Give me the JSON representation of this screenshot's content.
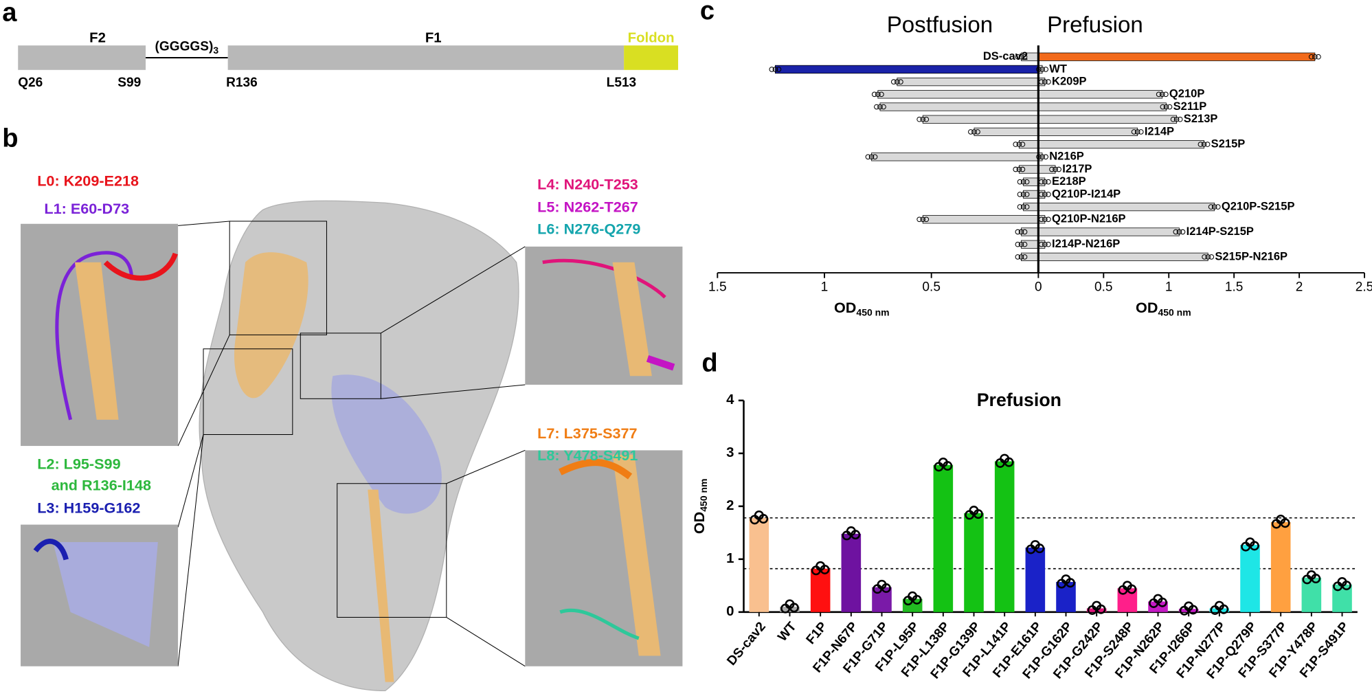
{
  "panel_labels": [
    "a",
    "b",
    "c",
    "d"
  ],
  "domain_map": {
    "domains": [
      "F2",
      "F1",
      "Foldon"
    ],
    "linker": "(GGGGS)",
    "linker_sub": "3",
    "residues": [
      "Q26",
      "S99",
      "R136",
      "L513"
    ]
  },
  "structure": {
    "loops": [
      {
        "label": "L0: K209-E218",
        "color": "#e8141c"
      },
      {
        "label": "L1: E60-D73",
        "color": "#7b22d8"
      },
      {
        "label": "L2: L95-S99",
        "color": "#2db83d"
      },
      {
        "label": "and R136-I148",
        "color": "#2db83d"
      },
      {
        "label": "L3: H159-G162",
        "color": "#1a1fb0"
      },
      {
        "label": "L4: N240-T253",
        "color": "#e0147a"
      },
      {
        "label": "L5: N262-T267",
        "color": "#c414c4"
      },
      {
        "label": "L6: N276-Q279",
        "color": "#14a5ad"
      },
      {
        "label": "L7: L375-S377",
        "color": "#f07d14"
      },
      {
        "label": "L8: Y478-S491",
        "color": "#2ec89a"
      }
    ]
  },
  "chart_data": [
    {
      "type": "diverging_bar",
      "categories": [
        "DS-cav2",
        "WT",
        "K209P",
        "Q210P",
        "S211P",
        "S213P",
        "I214P",
        "S215P",
        "N216P",
        "I217P",
        "E218P",
        "Q210P-I214P",
        "Q210P-S215P",
        "Q210P-N216P",
        "I214P-S215P",
        "I214P-N216P",
        "S215P-N216P"
      ],
      "series": [
        {
          "name": "Postfusion",
          "values": [
            0.08,
            1.23,
            0.66,
            0.75,
            0.74,
            0.54,
            0.3,
            0.09,
            0.78,
            0.09,
            0.07,
            0.07,
            0.07,
            0.54,
            0.08,
            0.08,
            0.08
          ],
          "colors": [
            "#d9d9d9",
            "#1a22a8",
            "#d9d9d9",
            "#d9d9d9",
            "#d9d9d9",
            "#d9d9d9",
            "#d9d9d9",
            "#d9d9d9",
            "#d9d9d9",
            "#d9d9d9",
            "#d9d9d9",
            "#d9d9d9",
            "#d9d9d9",
            "#d9d9d9",
            "#d9d9d9",
            "#d9d9d9",
            "#d9d9d9"
          ]
        },
        {
          "name": "Prefusion",
          "values": [
            2.12,
            0.03,
            0.05,
            0.95,
            0.98,
            1.06,
            0.76,
            1.27,
            0.03,
            0.13,
            0.05,
            0.05,
            1.35,
            0.05,
            1.08,
            0.05,
            1.3
          ],
          "colors": [
            "#f26a1b",
            "#d9d9d9",
            "#d9d9d9",
            "#d9d9d9",
            "#d9d9d9",
            "#d9d9d9",
            "#d9d9d9",
            "#d9d9d9",
            "#d9d9d9",
            "#d9d9d9",
            "#d9d9d9",
            "#d9d9d9",
            "#d9d9d9",
            "#d9d9d9",
            "#d9d9d9",
            "#d9d9d9",
            "#d9d9d9"
          ]
        }
      ],
      "xlim": [
        0,
        1.5
      ],
      "xticks": [
        1.5,
        1,
        0.5,
        0
      ],
      "x2lim": [
        0,
        2.5
      ],
      "x2ticks": [
        0.5,
        1,
        1.5,
        2,
        2.5
      ],
      "x_label": "OD",
      "x_label_sub": "450 nm"
    },
    {
      "type": "bar",
      "title": "Prefusion",
      "categories": [
        "DS-cav2",
        "WT",
        "F1P",
        "F1P-N67P",
        "F1P-G71P",
        "F1P-L95P",
        "F1P-L138P",
        "F1P-G139P",
        "F1P-L141P",
        "F1P-E161P",
        "F1P-G162P",
        "F1P-G242P",
        "F1P-S248P",
        "F1P-N262P",
        "F1P-I266P",
        "F1P-N277P",
        "F1P-Q279P",
        "F1P-S377P",
        "F1P-Y478P",
        "F1P-S491P"
      ],
      "values": [
        1.78,
        0.1,
        0.82,
        1.48,
        0.47,
        0.25,
        2.78,
        1.87,
        2.85,
        1.22,
        0.57,
        0.07,
        0.45,
        0.2,
        0.06,
        0.07,
        1.27,
        1.7,
        0.65,
        0.52
      ],
      "colors": [
        "#f9c08f",
        "#a6a6a6",
        "#ff1010",
        "#6e12a0",
        "#7a1aa8",
        "#22bb22",
        "#14c214",
        "#14c214",
        "#14c214",
        "#1a22c8",
        "#1a22c8",
        "#e0147a",
        "#ff1f8a",
        "#c41ac4",
        "#c41ac4",
        "#1ee6e6",
        "#1ee6e6",
        "#ffa040",
        "#40e0a8",
        "#40e0a8"
      ],
      "ylim": [
        0,
        4
      ],
      "yticks": [
        0,
        1,
        2,
        3,
        4
      ],
      "y_label": "OD",
      "y_label_sub": "450 nm"
    }
  ]
}
